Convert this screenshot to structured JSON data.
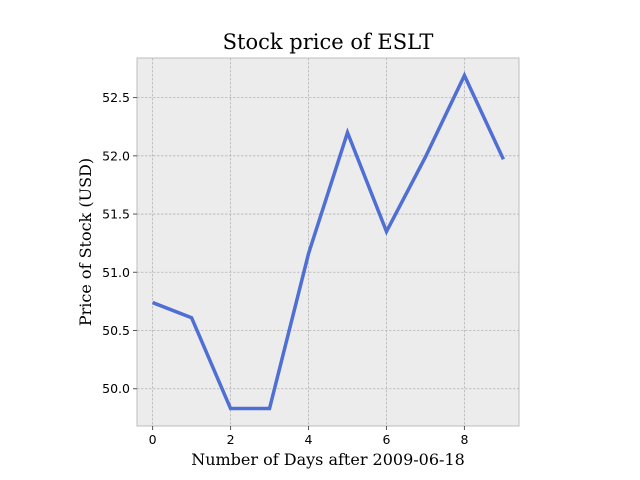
{
  "chart_data": {
    "type": "line",
    "title": "Stock price of ESLT",
    "xlabel": "Number of Days after 2009-06-18",
    "ylabel": "Price of Stock (USD)",
    "x": [
      0,
      1,
      2,
      3,
      4,
      5,
      6,
      7,
      8,
      9
    ],
    "series": [
      {
        "values": [
          50.74,
          50.61,
          49.83,
          49.83,
          51.16,
          52.2,
          51.35,
          51.99,
          52.69,
          51.97
        ]
      }
    ],
    "xlim": [
      -0.4,
      9.4
    ],
    "ylim": [
      49.68,
      52.84
    ],
    "xticks": [
      "0",
      "2",
      "4",
      "6",
      "8"
    ],
    "yticks": [
      "50.0",
      "50.5",
      "51.0",
      "51.5",
      "52.0",
      "52.5"
    ],
    "grid": true,
    "colors": {
      "line": "#4f6fd4",
      "plot_background": "#ececec",
      "grid": "#b5b5b5",
      "frame": "#bcbcbc"
    }
  }
}
